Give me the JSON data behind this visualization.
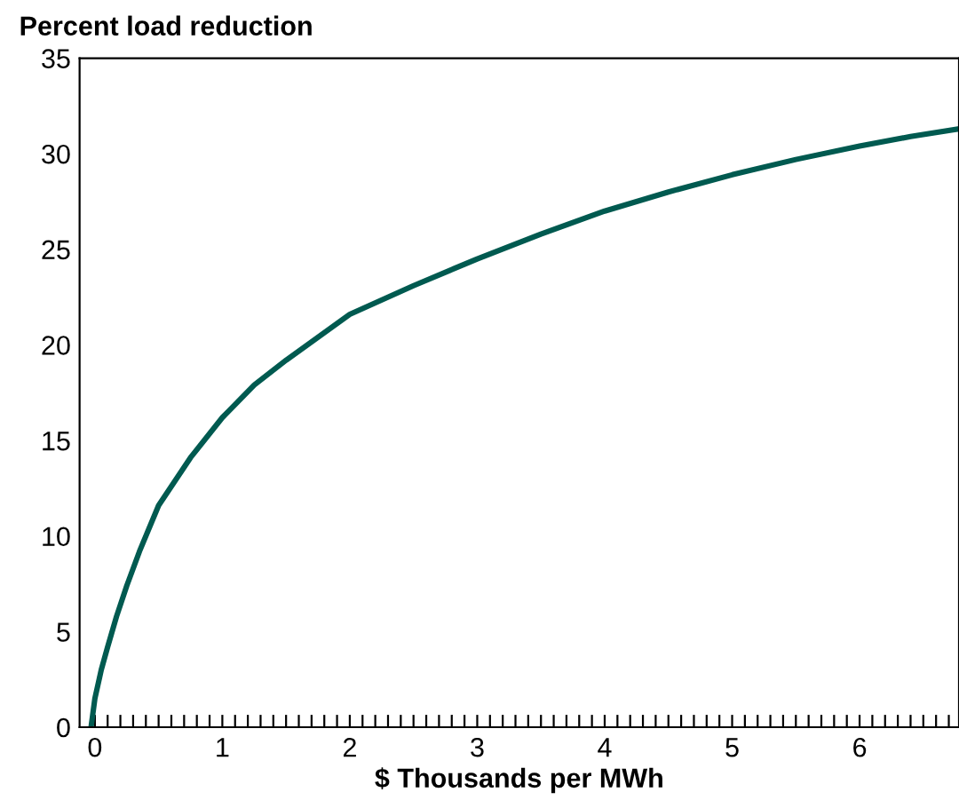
{
  "chart_data": {
    "type": "line",
    "ylabel": "Percent load reduction",
    "xlabel": "$ Thousands per MWh",
    "x": [
      -0.03,
      0.0,
      0.05,
      0.1,
      0.17,
      0.25,
      0.35,
      0.5,
      0.75,
      1.0,
      1.25,
      1.5,
      2.0,
      2.5,
      3.0,
      3.5,
      4.0,
      4.5,
      5.0,
      5.5,
      6.0,
      6.4,
      6.78
    ],
    "series": [
      {
        "color": "#005a50",
        "values": [
          0,
          1.5,
          3.0,
          4.2,
          5.8,
          7.4,
          9.2,
          11.6,
          14.1,
          16.2,
          17.9,
          19.2,
          21.6,
          23.1,
          24.5,
          25.8,
          27.0,
          28.0,
          28.9,
          29.7,
          30.4,
          30.9,
          31.3
        ]
      }
    ],
    "xlim": [
      -0.12,
      6.78
    ],
    "ylim": [
      0,
      35
    ],
    "xticks": [
      0,
      {
        "value": 0.1,
        "label": null
      },
      {
        "value": 0.2,
        "label": null
      },
      {
        "value": 0.3,
        "label": null
      },
      {
        "value": 0.4,
        "label": null
      },
      {
        "value": 0.5,
        "label": null
      },
      {
        "value": 0.6,
        "label": null
      },
      {
        "value": 0.7,
        "label": null
      },
      {
        "value": 0.8,
        "label": null
      },
      {
        "value": 0.9,
        "label": null
      },
      1,
      {
        "value": 1.1,
        "label": null
      },
      {
        "value": 1.2,
        "label": null
      },
      {
        "value": 1.3,
        "label": null
      },
      {
        "value": 1.4,
        "label": null
      },
      {
        "value": 1.5,
        "label": null
      },
      {
        "value": 1.6,
        "label": null
      },
      {
        "value": 1.7,
        "label": null
      },
      {
        "value": 1.8,
        "label": null
      },
      {
        "value": 1.9,
        "label": null
      },
      2,
      {
        "value": 2.1,
        "label": null
      },
      {
        "value": 2.2,
        "label": null
      },
      {
        "value": 2.3,
        "label": null
      },
      {
        "value": 2.4,
        "label": null
      },
      {
        "value": 2.5,
        "label": null
      },
      {
        "value": 2.6,
        "label": null
      },
      {
        "value": 2.7,
        "label": null
      },
      {
        "value": 2.8,
        "label": null
      },
      {
        "value": 2.9,
        "label": null
      },
      3,
      {
        "value": 3.1,
        "label": null
      },
      {
        "value": 3.2,
        "label": null
      },
      {
        "value": 3.3,
        "label": null
      },
      {
        "value": 3.4,
        "label": null
      },
      {
        "value": 3.5,
        "label": null
      },
      {
        "value": 3.6,
        "label": null
      },
      {
        "value": 3.7,
        "label": null
      },
      {
        "value": 3.8,
        "label": null
      },
      {
        "value": 3.9,
        "label": null
      },
      4,
      {
        "value": 4.1,
        "label": null
      },
      {
        "value": 4.2,
        "label": null
      },
      {
        "value": 4.3,
        "label": null
      },
      {
        "value": 4.4,
        "label": null
      },
      {
        "value": 4.5,
        "label": null
      },
      {
        "value": 4.6,
        "label": null
      },
      {
        "value": 4.7,
        "label": null
      },
      {
        "value": 4.8,
        "label": null
      },
      {
        "value": 4.9,
        "label": null
      },
      5,
      {
        "value": 5.1,
        "label": null
      },
      {
        "value": 5.2,
        "label": null
      },
      {
        "value": 5.3,
        "label": null
      },
      {
        "value": 5.4,
        "label": null
      },
      {
        "value": 5.5,
        "label": null
      },
      {
        "value": 5.6,
        "label": null
      },
      {
        "value": 5.7,
        "label": null
      },
      {
        "value": 5.8,
        "label": null
      },
      {
        "value": 5.9,
        "label": null
      },
      6,
      {
        "value": 6.1,
        "label": null
      },
      {
        "value": 6.2,
        "label": null
      },
      {
        "value": 6.3,
        "label": null
      },
      {
        "value": 6.4,
        "label": null
      },
      {
        "value": 6.5,
        "label": null
      },
      {
        "value": 6.6,
        "label": null
      },
      {
        "value": 6.7,
        "label": null
      }
    ],
    "yticks": [
      0,
      5,
      10,
      15,
      20,
      25,
      30,
      35
    ],
    "grid": false,
    "marker": "none",
    "line_style": "solid"
  }
}
